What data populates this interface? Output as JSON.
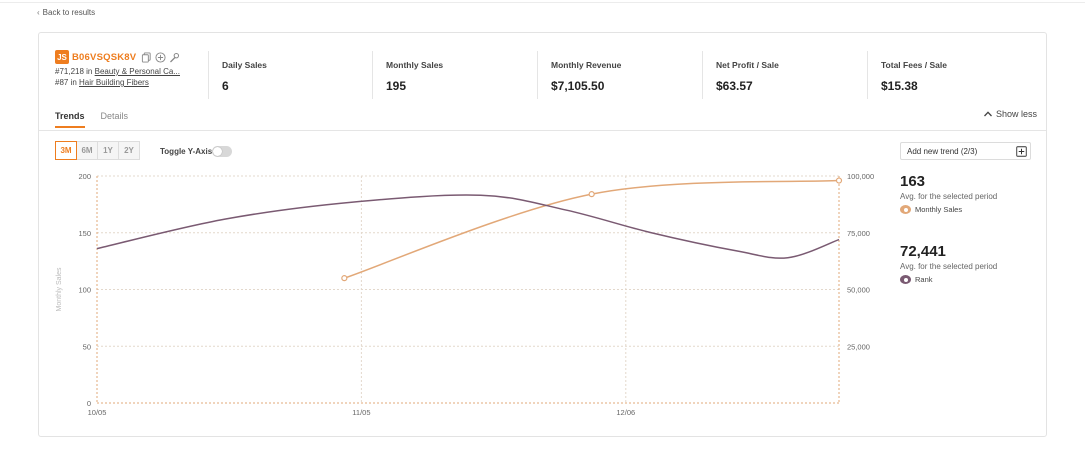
{
  "nav": {
    "back_label": "Back to results"
  },
  "product": {
    "logo_text": "JS",
    "asin": "B06VSQSK8V",
    "rank1_prefix": "#71,218 in",
    "rank1_category": "Beauty & Personal Ca...",
    "rank2_prefix": "#87 in",
    "rank2_category": "Hair Building Fibers"
  },
  "metrics": [
    {
      "label": "Daily Sales",
      "value": "6"
    },
    {
      "label": "Monthly Sales",
      "value": "195"
    },
    {
      "label": "Monthly Revenue",
      "value": "$7,105.50"
    },
    {
      "label": "Net Profit / Sale",
      "value": "$63.57"
    },
    {
      "label": "Total Fees / Sale",
      "value": "$15.38"
    }
  ],
  "tabs": [
    {
      "label": "Trends",
      "active": true
    },
    {
      "label": "Details",
      "active": false
    }
  ],
  "show_less_label": "Show less",
  "ranges": [
    {
      "label": "3M",
      "active": true
    },
    {
      "label": "6M",
      "active": false
    },
    {
      "label": "1Y",
      "active": false
    },
    {
      "label": "2Y",
      "active": false
    }
  ],
  "toggle_y_axis": {
    "label": "Toggle Y-Axis",
    "on": false
  },
  "side_panel": {
    "add_trend_label": "Add new trend (2/3)",
    "stats": [
      {
        "value": "163",
        "subtitle": "Avg. for the selected period",
        "legend": "Monthly Sales",
        "color": "#e2a878"
      },
      {
        "value": "72,441",
        "subtitle": "Avg. for the selected period",
        "legend": "Rank",
        "color": "#7a5a72"
      }
    ]
  },
  "colors": {
    "accent": "#ee7d1f",
    "monthly_sales": "#e2a878",
    "rank": "#7a5a72"
  },
  "chart_data": {
    "type": "line",
    "y_left": {
      "label": "Monthly Sales",
      "ticks": [
        "200",
        "150",
        "100",
        "50",
        "0"
      ],
      "range": [
        0,
        200
      ]
    },
    "y_right": {
      "ticks": [
        "100,000",
        "75,000",
        "50,000",
        "25,000"
      ],
      "range": [
        0,
        100000
      ]
    },
    "x_ticks": [
      "10/05",
      "11/05",
      "12/06"
    ],
    "x_range_days": [
      0,
      87
    ],
    "x_tick_days": [
      0,
      31,
      62
    ],
    "series": [
      {
        "name": "Monthly Sales",
        "axis": "left",
        "color": "#e2a878",
        "points": [
          {
            "day": 29,
            "value": 110
          },
          {
            "day": 58,
            "value": 184
          },
          {
            "day": 87,
            "value": 196
          }
        ]
      },
      {
        "name": "Rank",
        "axis": "right",
        "color": "#7a5a72",
        "points": [
          {
            "day": 0,
            "value": 68000
          },
          {
            "day": 15,
            "value": 81000
          },
          {
            "day": 30,
            "value": 88500
          },
          {
            "day": 45,
            "value": 91500
          },
          {
            "day": 55,
            "value": 85000
          },
          {
            "day": 65,
            "value": 75000
          },
          {
            "day": 75,
            "value": 67000
          },
          {
            "day": 81,
            "value": 64000
          },
          {
            "day": 87,
            "value": 72000
          }
        ]
      }
    ]
  }
}
